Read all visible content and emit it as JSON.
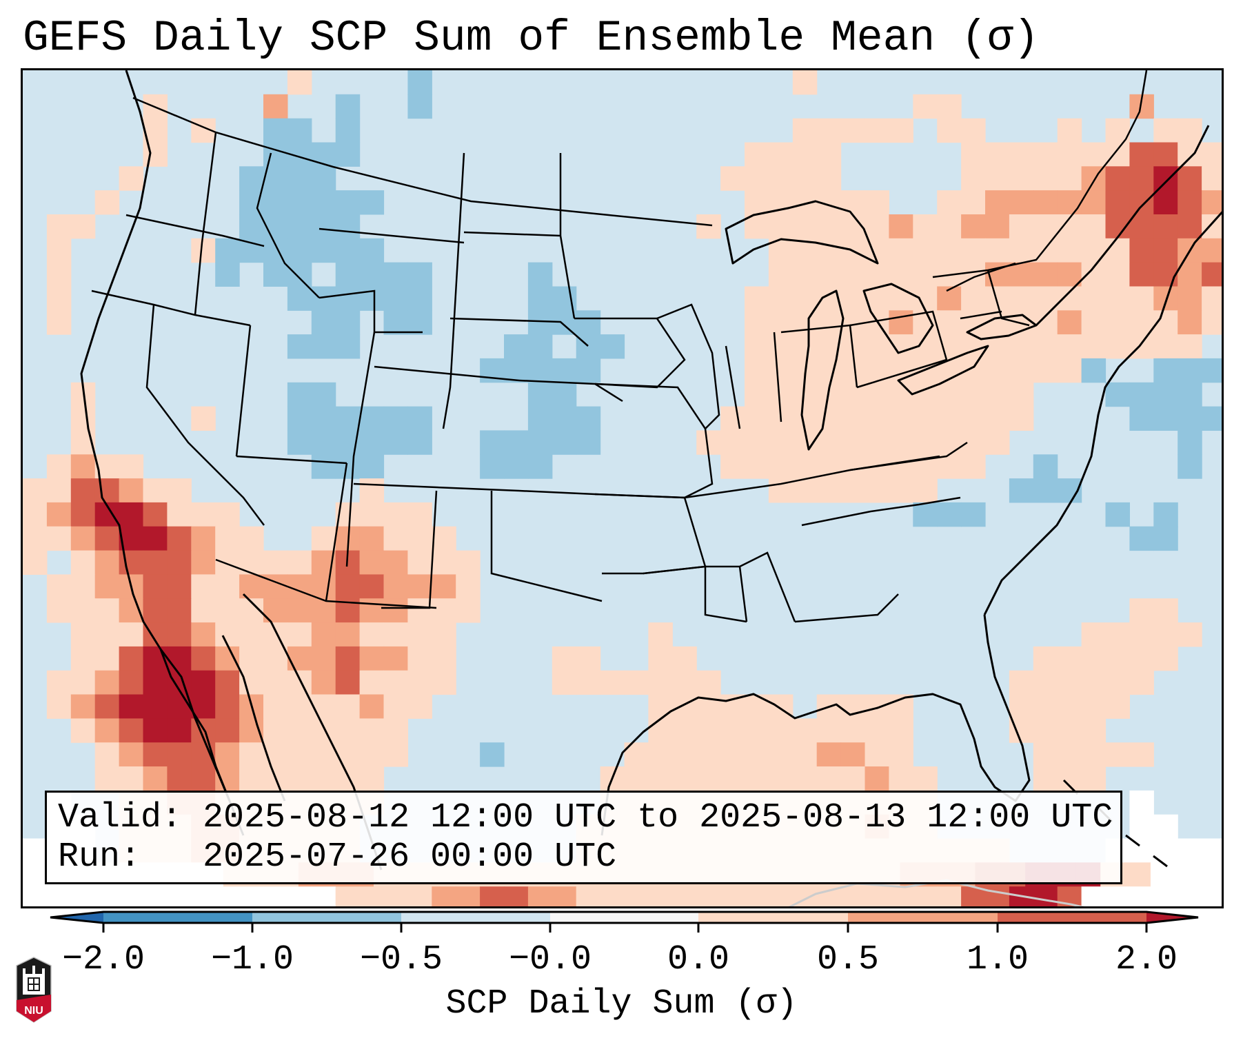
{
  "title": "GEFS Daily SCP Sum of Ensemble Mean (σ)",
  "info": {
    "valid_line": "Valid: 2025-08-12 12:00 UTC to 2025-08-13 12:00 UTC",
    "run_line": "Run:   2025-07-26 00:00 UTC"
  },
  "logo": {
    "text": "NIU",
    "icon": "niu-logo-icon"
  },
  "colors": {
    "outside": "#ffffff",
    "lt_neg": "#d1e5f0",
    "md_neg": "#92c5de",
    "dk_neg": "#4393c3",
    "xdk_neg": "#2166ac",
    "near_zero": "#f7f7f7",
    "lt_pos": "#fddbc7",
    "md_pos": "#f4a582",
    "dk_pos": "#d6604d",
    "xdk_pos": "#b2182b",
    "boundary": "#000000"
  },
  "chart_data": {
    "type": "heatmap",
    "title": "GEFS Daily SCP Sum of Ensemble Mean (σ)",
    "xlabel": "",
    "ylabel": "",
    "colorbar": {
      "label": "SCP Daily Sum (σ)",
      "ticks": [
        "−2.0",
        "−1.0",
        "−0.5",
        "−0.0",
        "0.0",
        "0.5",
        "1.0",
        "2.0"
      ],
      "levels": [
        -2.0,
        -1.0,
        -0.5,
        -0.0,
        0.0,
        0.5,
        1.0,
        2.0
      ],
      "bins": [
        {
          "range": "< -2.0",
          "color": "#2166ac"
        },
        {
          "range": "-2.0 to -1.0",
          "color": "#4393c3"
        },
        {
          "range": "-1.0 to -0.5",
          "color": "#92c5de"
        },
        {
          "range": "-0.5 to -0.0",
          "color": "#d1e5f0"
        },
        {
          "range": "-0.0 to 0.0",
          "color": "#f7f7f7"
        },
        {
          "range": "0.0 to 0.5",
          "color": "#fddbc7"
        },
        {
          "range": "0.5 to 1.0",
          "color": "#f4a582"
        },
        {
          "range": "1.0 to 2.0",
          "color": "#d6604d"
        },
        {
          "range": "> 2.0",
          "color": "#b2182b"
        }
      ],
      "extend": "both",
      "placement": "bottom"
    },
    "field_legend": {
      "w": "outside-domain",
      "0": "-0.5 to -0.0",
      "1": "-1.0 to -0.5",
      "2": "0.0 to 0.5",
      "3": "0.5 to 1.0",
      "4": "1.0 to 2.0",
      "5": "> 2.0"
    },
    "field_note": "approximate gridded sigma-category field over CONUS (rows north to south, columns west to east)",
    "field": [
      "00000000000200001000000000000000200000000000000000",
      "00000200003001001000000000000000000002200000003000",
      "00000202001101000000000000000000222220220002020220",
      "00000200001111000000000000000022220000022222224422",
      "00002000011110000000000000000222220000022222344542",
      "00020000011111100000000000000022222200223333344543",
      "02200000011111000000000000002022222232233222244442",
      "02000002111111100000000000000002222222222222224433",
      "02000000101101111000010000000002222222223333224434",
      "02000000000111111000011000000022222222322222222332",
      "02000000000011011000011100000022222232222223222232",
      "00000000000111000000110110000022222222222222222220",
      "00000000000000000001111100000022222222222222100111",
      "00200000000110000000011000000022222222222200011110",
      "00200002000111111000011100000222222222222200001111",
      "00200000000111111001111100002222222222222000000010",
      "02322000000011100001110000000222222222220010000010",
      "22443220000000200000000000000002222222000111000000",
      "23455422200002222000000000000000000001110000010100",
      "22345543220023322200000000000000000000000000001100",
      "20234443222234332220000000000000000000000000000000",
      "02233442233334433320000000000000000000000000000000",
      "02223442223334332220000000000000000000000000002200",
      "00222443222233222200000000200000000000000000222220",
      "00224554322334332200002200220000000000000022222200",
      "02234555422234222200002222222000000000000222222000",
      "02345555432222322000000000222222022220000222220000",
      "00234554432222220000000000222222222220000222200000",
      "00023444322222220001000002222222233220000022222000",
      "00022344322222200000000022222222222322000022200000",
      "0w00223322222220000000002222222222222200000000w000",
      "0ww0222332222200000000022222222222232200000000ww00",
      "www022233222220000000002222222222222222220000wwwww",
      "wwwwwwww2223332222222222222222222223334455522www",
      "wwwwwwwwwwwww2222334433222222222222222244554wwwwww"
    ]
  }
}
